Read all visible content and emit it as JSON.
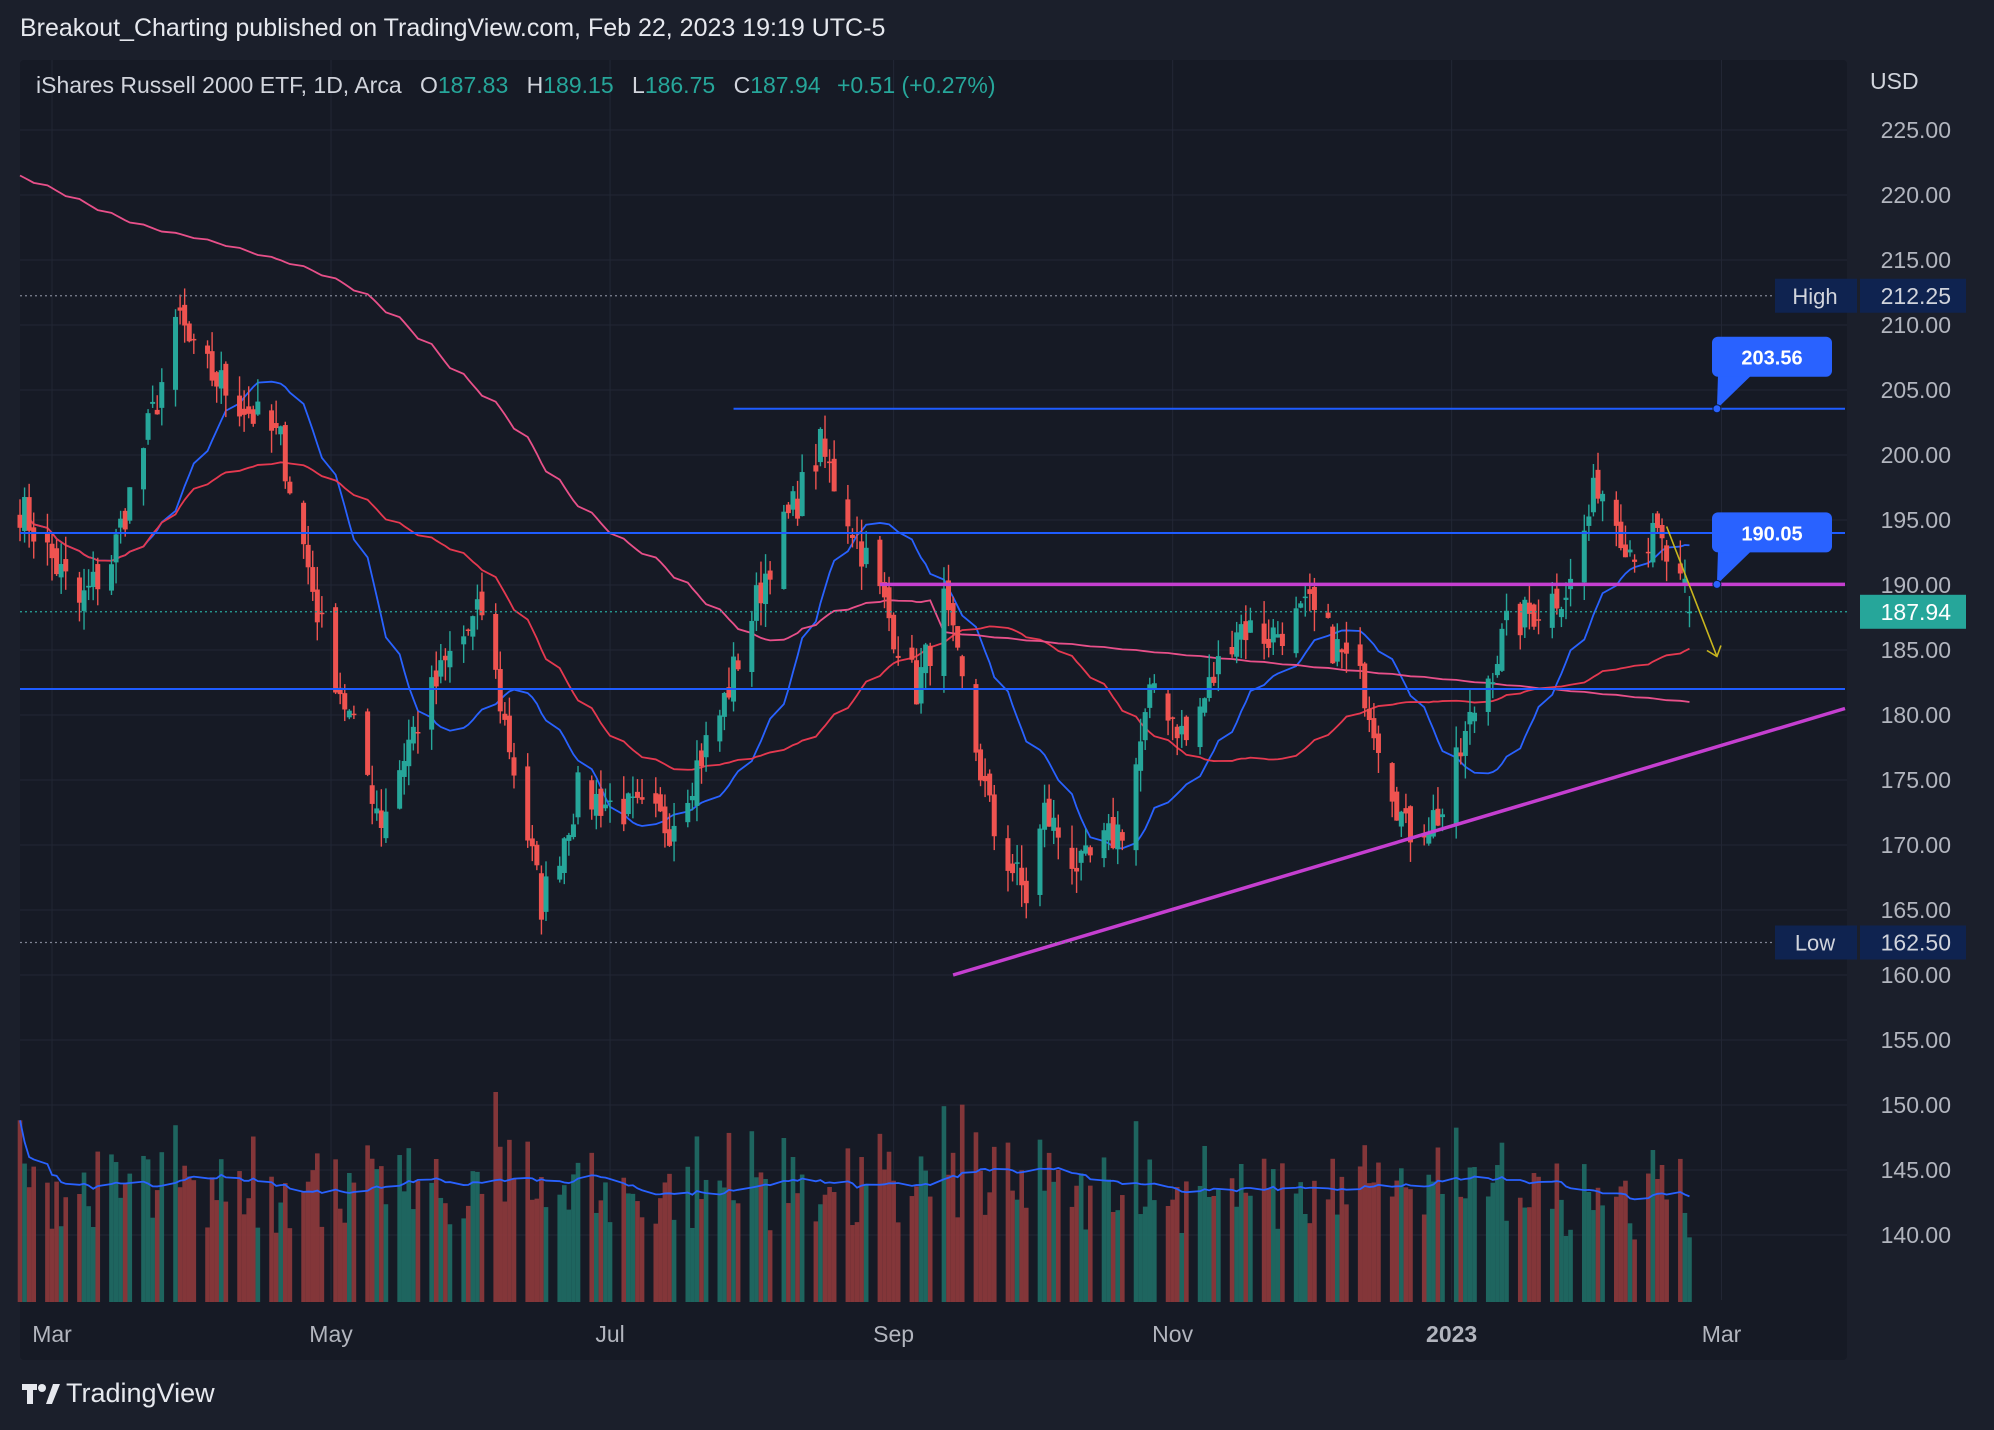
{
  "header": {
    "published_line": "Breakout_Charting published on TradingView.com, Feb 22, 2023 19:19 UTC-5"
  },
  "legend": {
    "symbol": "iShares Russell 2000 ETF, 1D, Arca",
    "open_label": "O",
    "open": "187.83",
    "high_label": "H",
    "high": "189.15",
    "low_label": "L",
    "low": "186.75",
    "close_label": "C",
    "close": "187.94",
    "change": "+0.51 (+0.27%)"
  },
  "axis": {
    "currency": "USD"
  },
  "footer": {
    "brand": "TradingView"
  },
  "colors": {
    "up": "#26a69a",
    "down": "#ef5350",
    "ma_blue": "#2962ff",
    "ma_red": "#e53950",
    "ma_pink": "#e8508a",
    "trendline": "#c53fd0",
    "level_blue": "#1e5cff",
    "background": "#161a25"
  },
  "chart_data": {
    "type": "candlestick",
    "title": "",
    "ylim": [
      134.5,
      230.5
    ],
    "y_ticks": [
      225.0,
      220.0,
      215.0,
      210.0,
      205.0,
      200.0,
      195.0,
      190.0,
      185.0,
      180.0,
      175.0,
      170.0,
      165.0,
      160.0,
      155.0,
      150.0,
      145.0,
      140.0
    ],
    "y_tick_labels": [
      "225.00",
      "220.00",
      "215.00",
      "210.00",
      "205.00",
      "200.00",
      "195.00",
      "190.00",
      "185.00",
      "180.00",
      "175.00",
      "170.00",
      "165.00",
      "160.00",
      "155.00",
      "150.00",
      "145.00",
      "140.00"
    ],
    "x_range": [
      "2022-02-22",
      "2023-03-28"
    ],
    "x_ticks": [
      {
        "date": "2022-03-01",
        "label": "Mar",
        "bold": false
      },
      {
        "date": "2022-05-01",
        "label": "May",
        "bold": false
      },
      {
        "date": "2022-07-01",
        "label": "Jul",
        "bold": false
      },
      {
        "date": "2022-09-01",
        "label": "Sep",
        "bold": false
      },
      {
        "date": "2022-11-01",
        "label": "Nov",
        "bold": false
      },
      {
        "date": "2023-01-01",
        "label": "2023",
        "bold": true
      },
      {
        "date": "2023-03-01",
        "label": "Mar",
        "bold": false
      }
    ],
    "close_anchors": [
      [
        "2022-02-22",
        196.0
      ],
      [
        "2022-03-07",
        188.5
      ],
      [
        "2022-03-14",
        192.0
      ],
      [
        "2022-03-29",
        210.5
      ],
      [
        "2022-04-01",
        207.5
      ],
      [
        "2022-04-20",
        201.0
      ],
      [
        "2022-04-29",
        186.5
      ],
      [
        "2022-05-12",
        172.0
      ],
      [
        "2022-05-18",
        178.0
      ],
      [
        "2022-05-27",
        184.5
      ],
      [
        "2022-06-03",
        188.0
      ],
      [
        "2022-06-16",
        165.5
      ],
      [
        "2022-06-24",
        174.0
      ],
      [
        "2022-07-14",
        171.5
      ],
      [
        "2022-07-25",
        180.0
      ],
      [
        "2022-08-05",
        192.0
      ],
      [
        "2022-08-16",
        200.5
      ],
      [
        "2022-08-26",
        192.0
      ],
      [
        "2022-09-06",
        182.0
      ],
      [
        "2022-09-12",
        188.5
      ],
      [
        "2022-09-23",
        171.0
      ],
      [
        "2022-09-30",
        166.0
      ],
      [
        "2022-10-04",
        172.5
      ],
      [
        "2022-10-12",
        168.0
      ],
      [
        "2022-10-21",
        171.5
      ],
      [
        "2022-10-28",
        182.5
      ],
      [
        "2022-11-04",
        178.0
      ],
      [
        "2022-11-15",
        187.0
      ],
      [
        "2022-11-22",
        186.0
      ],
      [
        "2022-12-01",
        188.0
      ],
      [
        "2022-12-13",
        182.0
      ],
      [
        "2022-12-22",
        171.0
      ],
      [
        "2022-12-30",
        172.5
      ],
      [
        "2023-01-06",
        180.5
      ],
      [
        "2023-01-13",
        186.5
      ],
      [
        "2023-01-27",
        190.0
      ],
      [
        "2023-02-02",
        198.0
      ],
      [
        "2023-02-09",
        193.0
      ],
      [
        "2023-02-15",
        193.5
      ],
      [
        "2023-02-21",
        189.0
      ],
      [
        "2023-02-22",
        187.94
      ]
    ],
    "moving_averages": [
      {
        "period": 20,
        "color": "#2962ff"
      },
      {
        "period": 50,
        "color": "#e53950"
      },
      {
        "period": 200,
        "color": "#e8508a",
        "start_value": 221.5
      }
    ],
    "volume": {
      "axis_note": "volume pane at bottom, no scale shown",
      "ma_period": 20
    },
    "price_markers": [
      {
        "label": "High",
        "value": 212.25,
        "display": "212.25"
      },
      {
        "label": "Low",
        "value": 162.5,
        "display": "162.50"
      }
    ],
    "last_price": {
      "value": 187.94,
      "display": "187.94"
    },
    "drawings": {
      "horizontal_lines": [
        {
          "value": 203.56,
          "from": "2022-07-28",
          "to": "2023-03-28"
        },
        {
          "value": 194.0,
          "from": "2022-02-22",
          "to": "2023-03-28"
        },
        {
          "value": 182.0,
          "from": "2022-02-22",
          "to": "2023-03-28"
        }
      ],
      "resistance_line": {
        "value": 190.05,
        "from": "2022-08-29",
        "to": "2023-03-28"
      },
      "trendline": {
        "from": [
          "2022-09-14",
          160.0
        ],
        "to": [
          "2023-03-28",
          180.5
        ]
      },
      "callouts": [
        {
          "value": 203.56,
          "display": "203.56",
          "anchor_date": "2023-02-28"
        },
        {
          "value": 190.05,
          "display": "190.05",
          "anchor_date": "2023-02-28"
        }
      ],
      "projection_arrow": {
        "from": [
          "2023-02-17",
          194.5
        ],
        "to": [
          "2023-02-28",
          184.5
        ]
      }
    }
  }
}
